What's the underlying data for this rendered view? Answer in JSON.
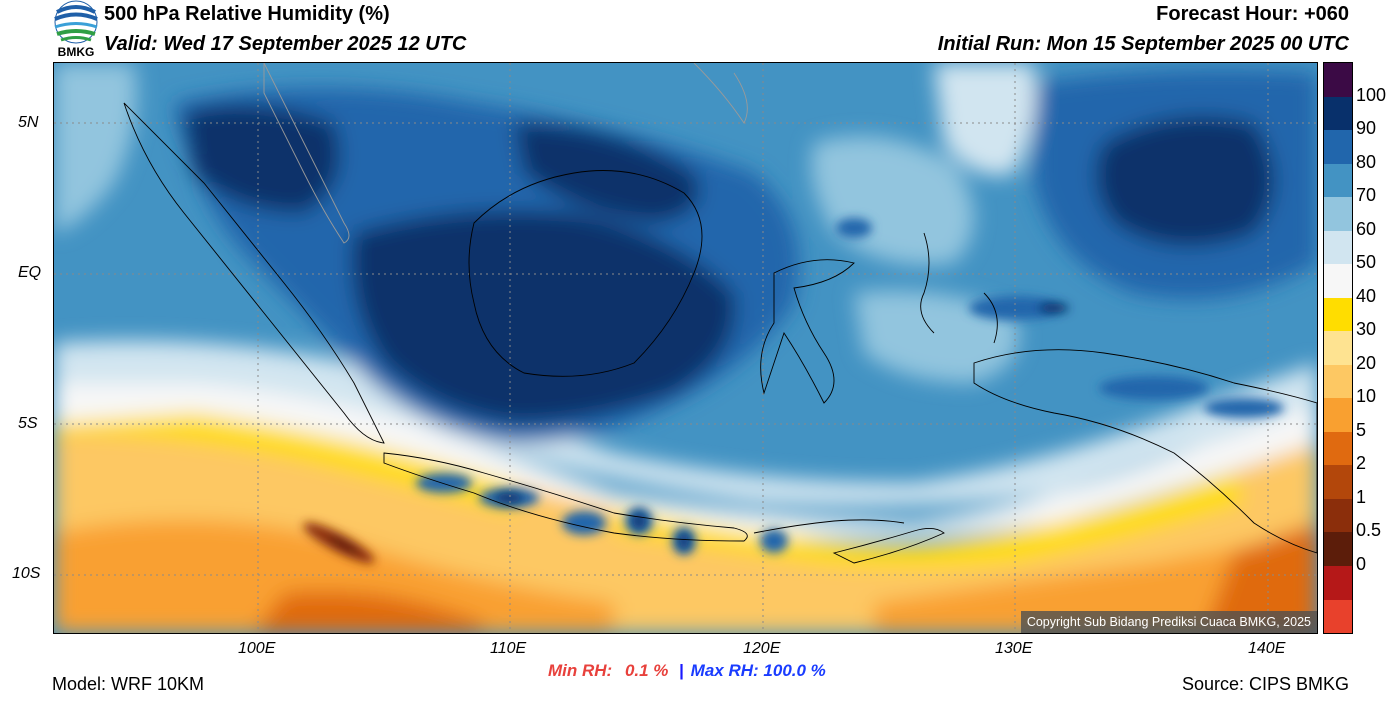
{
  "header": {
    "logo_text": "BMKG",
    "title": "500 hPa Relative Humidity (%)",
    "valid": "Valid: Wed 17 September 2025 12 UTC",
    "forecast_hour": "Forecast Hour: +060",
    "initial_run": "Initial Run: Mon 15 September 2025 00 UTC"
  },
  "map": {
    "lat_labels": [
      "5N",
      "EQ",
      "5S",
      "10S"
    ],
    "lon_labels": [
      "100E",
      "110E",
      "120E",
      "130E",
      "140E"
    ],
    "copyright": "Copyright Sub Bidang Prediksi Cuaca BMKG, 2025"
  },
  "colorbar": {
    "labels": [
      "100",
      "90",
      "80",
      "70",
      "60",
      "50",
      "40",
      "30",
      "20",
      "10",
      "5",
      "2",
      "1",
      "0.5",
      "0"
    ],
    "colors": [
      "#3b0a45",
      "#08306b",
      "#2166ac",
      "#4393c3",
      "#92c5de",
      "#d1e5f0",
      "#f7f7f7",
      "#ffdd00",
      "#fee391",
      "#fdc863",
      "#f9a030",
      "#e06a10",
      "#b3470b",
      "#8b2e0b",
      "#5c1d0a",
      "#b51818",
      "#e8412c"
    ]
  },
  "footer": {
    "model": "Model: WRF 10KM",
    "min_rh_label": "Min RH:",
    "min_rh_value": "0.1 %",
    "separator": "|",
    "max_rh": "Max RH: 100.0 %",
    "source": "Source: CIPS BMKG"
  }
}
